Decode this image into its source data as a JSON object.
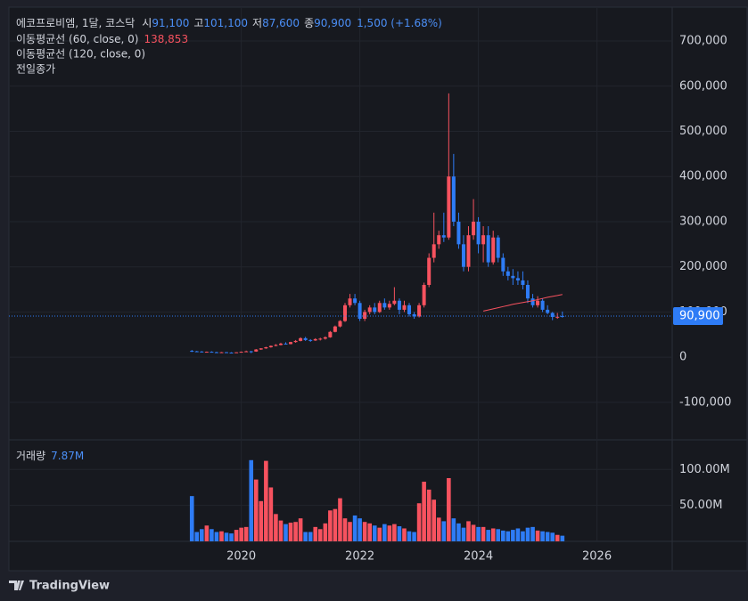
{
  "header": {
    "symbol": "에코프로비엠, 1달, 코스닥",
    "fields": [
      {
        "key": "시",
        "label": "91,100"
      },
      {
        "key": "고",
        "label": "101,100"
      },
      {
        "key": "저",
        "label": "87,600"
      },
      {
        "key": "종",
        "label": "90,900"
      }
    ],
    "change": "1,500 (+1.68%)",
    "prev_close_label": "전일종가"
  },
  "chart_data": {
    "type": "candlestick",
    "up_color": "#f7525f",
    "down_color": "#2e7cf6",
    "x": [
      2019.167,
      2019.25,
      2019.333,
      2019.417,
      2019.5,
      2019.583,
      2019.667,
      2019.75,
      2019.833,
      2019.917,
      2020,
      2020.083,
      2020.167,
      2020.25,
      2020.333,
      2020.417,
      2020.5,
      2020.583,
      2020.667,
      2020.75,
      2020.833,
      2020.917,
      2021,
      2021.083,
      2021.167,
      2021.25,
      2021.333,
      2021.417,
      2021.5,
      2021.583,
      2021.667,
      2021.75,
      2021.833,
      2021.917,
      2022,
      2022.083,
      2022.167,
      2022.25,
      2022.333,
      2022.417,
      2022.5,
      2022.583,
      2022.667,
      2022.75,
      2022.833,
      2022.917,
      2023,
      2023.083,
      2023.167,
      2023.25,
      2023.333,
      2023.417,
      2023.5,
      2023.583,
      2023.667,
      2023.75,
      2023.833,
      2023.917,
      2024,
      2024.083,
      2024.167,
      2024.25,
      2024.333,
      2024.417,
      2024.5,
      2024.583,
      2024.667,
      2024.75,
      2024.833,
      2024.917,
      2025,
      2025.083,
      2025.167,
      2025.25,
      2025.333,
      2025.417
    ],
    "open": [
      14000,
      13000,
      12500,
      11500,
      12000,
      11000,
      10500,
      11000,
      10200,
      10000,
      10800,
      12000,
      13000,
      12500,
      17000,
      19500,
      22000,
      25000,
      27000,
      30000,
      29000,
      33500,
      36000,
      42000,
      38000,
      37000,
      40000,
      41000,
      44000,
      56000,
      68000,
      80000,
      115000,
      130000,
      120000,
      85000,
      100000,
      110000,
      100000,
      120000,
      110000,
      118000,
      125000,
      105000,
      115000,
      95000,
      90000,
      115000,
      160000,
      220000,
      250000,
      270000,
      265000,
      400000,
      300000,
      250000,
      200000,
      270000,
      300000,
      250000,
      270000,
      210000,
      265000,
      220000,
      190000,
      180000,
      175000,
      170000,
      160000,
      130000,
      115000,
      125000,
      105000,
      98000,
      89000,
      91100
    ],
    "high": [
      16000,
      14000,
      13500,
      12500,
      13000,
      12000,
      11500,
      11500,
      11000,
      11200,
      12500,
      14500,
      14000,
      18000,
      20000,
      23000,
      26000,
      29000,
      32000,
      33000,
      34000,
      38000,
      44000,
      45000,
      40000,
      42000,
      43000,
      46000,
      58000,
      70000,
      82000,
      120000,
      140000,
      140000,
      125000,
      105000,
      115000,
      120000,
      125000,
      130000,
      125000,
      155000,
      130000,
      125000,
      120000,
      100000,
      120000,
      165000,
      230000,
      320000,
      280000,
      320000,
      584000,
      450000,
      320000,
      270000,
      290000,
      350000,
      310000,
      290000,
      290000,
      280000,
      270000,
      230000,
      200000,
      195000,
      190000,
      190000,
      170000,
      140000,
      135000,
      130000,
      115000,
      100000,
      98000,
      101100
    ],
    "low": [
      11500,
      11800,
      11000,
      10500,
      10800,
      9800,
      10000,
      9800,
      9500,
      9600,
      10500,
      11500,
      9000,
      12000,
      16000,
      18500,
      21000,
      24000,
      26000,
      28000,
      28500,
      32000,
      35000,
      36000,
      34000,
      36000,
      37000,
      39000,
      43000,
      55000,
      66000,
      78000,
      110000,
      115000,
      80000,
      80000,
      95000,
      95000,
      98000,
      105000,
      105000,
      115000,
      95000,
      100000,
      90000,
      85000,
      88000,
      110000,
      155000,
      210000,
      240000,
      255000,
      260000,
      290000,
      240000,
      190000,
      190000,
      260000,
      230000,
      210000,
      200000,
      205000,
      210000,
      180000,
      170000,
      160000,
      160000,
      150000,
      120000,
      110000,
      110000,
      100000,
      95000,
      82000,
      85000,
      87600
    ],
    "close": [
      13000,
      12500,
      11500,
      12000,
      11000,
      10500,
      11000,
      10200,
      10000,
      10800,
      12000,
      13000,
      12500,
      17000,
      19500,
      22000,
      25000,
      27000,
      30000,
      29000,
      33500,
      36000,
      42000,
      38000,
      37000,
      40000,
      41000,
      44000,
      56000,
      68000,
      80000,
      115000,
      130000,
      120000,
      85000,
      100000,
      110000,
      100000,
      120000,
      110000,
      118000,
      125000,
      105000,
      115000,
      95000,
      90000,
      115000,
      160000,
      220000,
      250000,
      270000,
      265000,
      400000,
      300000,
      250000,
      200000,
      270000,
      300000,
      250000,
      270000,
      210000,
      265000,
      220000,
      190000,
      180000,
      175000,
      170000,
      160000,
      130000,
      115000,
      125000,
      105000,
      98000,
      89000,
      89400,
      90900
    ],
    "ma": [
      {
        "name": "이동평균선 (60, close, 0)",
        "color": "#f7525f",
        "legend_value_label": "138,853",
        "values": [
          null,
          null,
          null,
          null,
          null,
          null,
          null,
          null,
          null,
          null,
          null,
          null,
          null,
          null,
          null,
          null,
          null,
          null,
          null,
          null,
          null,
          null,
          null,
          null,
          null,
          null,
          null,
          null,
          null,
          null,
          null,
          null,
          null,
          null,
          null,
          null,
          null,
          null,
          null,
          null,
          null,
          null,
          null,
          null,
          null,
          null,
          null,
          null,
          null,
          null,
          null,
          null,
          null,
          null,
          null,
          null,
          null,
          null,
          null,
          102000,
          104500,
          107000,
          109500,
          112000,
          114500,
          117000,
          119000,
          121000,
          123000,
          125000,
          127500,
          130000,
          132500,
          134500,
          136500,
          138853
        ]
      },
      {
        "name": "이동평균선 (120, close, 0)"
      }
    ],
    "last_price": {
      "value": 90900,
      "label": "90,900",
      "color": "#2e7cf6"
    },
    "ylim": [
      -183000,
      775000
    ],
    "yticks": [
      {
        "value": -100000,
        "label": "-100,000"
      },
      0,
      {
        "value": 100000,
        "label": "100,000"
      },
      {
        "value": 200000,
        "label": "200,000"
      },
      {
        "value": 300000,
        "label": "300,000"
      },
      {
        "value": 400000,
        "label": "400,000"
      },
      {
        "value": 500000,
        "label": "500,000"
      },
      {
        "value": 600000,
        "label": "600,000"
      },
      {
        "value": 700000,
        "label": "700,000"
      }
    ],
    "xlim": [
      2016.08,
      2027.27
    ],
    "xticks": [
      2020,
      2022,
      2024,
      2026
    ],
    "grid": true,
    "volume": {
      "name": "거래량",
      "legend_label": "7.87M",
      "values": [
        63000000,
        13000000,
        17000000,
        22000000,
        17000000,
        13000000,
        14000000,
        12000000,
        11000000,
        16000000,
        19000000,
        20000000,
        113000000,
        86000000,
        56000000,
        112000000,
        75000000,
        38000000,
        29000000,
        24000000,
        26000000,
        27000000,
        32000000,
        13000000,
        13000000,
        20000000,
        17000000,
        25000000,
        43000000,
        45000000,
        60000000,
        32000000,
        27000000,
        36000000,
        32000000,
        27000000,
        25000000,
        22000000,
        19000000,
        24000000,
        22000000,
        24000000,
        21000000,
        18000000,
        14000000,
        13000000,
        53000000,
        83000000,
        72000000,
        58000000,
        33000000,
        28000000,
        88000000,
        32000000,
        25000000,
        19000000,
        28000000,
        23000000,
        20000000,
        20000000,
        16000000,
        18000000,
        17000000,
        15000000,
        14000000,
        16000000,
        18000000,
        14000000,
        19000000,
        20000000,
        15000000,
        14000000,
        13000000,
        12000000,
        9000000,
        7870000
      ],
      "ylim": [
        0,
        140000000
      ],
      "yticks": [
        {
          "value": 50000000,
          "label": "50.00M"
        },
        {
          "value": 100000000,
          "label": "100.00M"
        }
      ]
    }
  },
  "footer": {
    "brand": "TradingView"
  }
}
